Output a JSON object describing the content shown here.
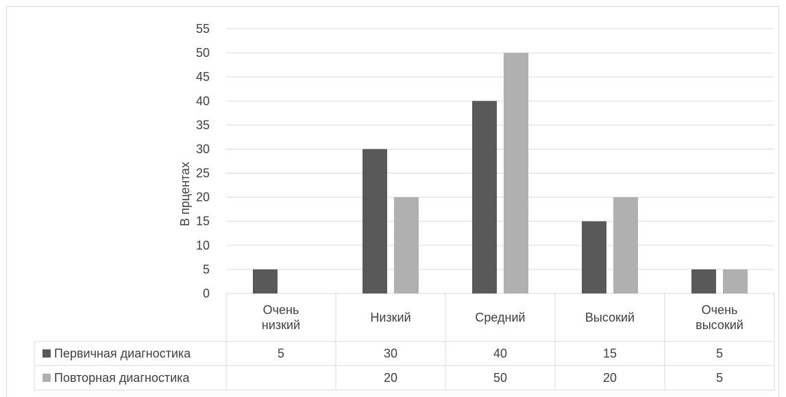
{
  "chart_data": {
    "type": "bar",
    "title": "",
    "ylabel": "В прцентах",
    "xlabel": "",
    "categories": [
      [
        "Очень",
        "низкий"
      ],
      [
        "Низкий"
      ],
      [
        "Средний"
      ],
      [
        "Высокий"
      ],
      [
        "Очень",
        "высокий"
      ]
    ],
    "series": [
      {
        "name": "Первичная диагностика",
        "color": "#595959",
        "values": [
          5,
          30,
          40,
          15,
          5
        ]
      },
      {
        "name": "Повторная диагностика",
        "color": "#b0b0b0",
        "values": [
          null,
          20,
          50,
          20,
          5
        ]
      }
    ],
    "ylim": [
      0,
      55
    ],
    "yticks": [
      0,
      5,
      10,
      15,
      20,
      25,
      30,
      35,
      40,
      45,
      50,
      55
    ],
    "grid": true,
    "legend": "data-table",
    "data_table": true
  }
}
